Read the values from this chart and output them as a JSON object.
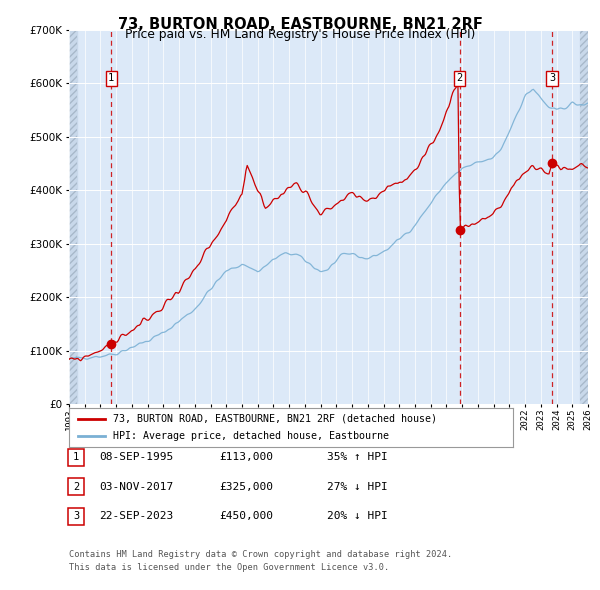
{
  "title1": "73, BURTON ROAD, EASTBOURNE, BN21 2RF",
  "title2": "Price paid vs. HM Land Registry's House Price Index (HPI)",
  "red_label": "73, BURTON ROAD, EASTBOURNE, BN21 2RF (detached house)",
  "blue_label": "HPI: Average price, detached house, Eastbourne",
  "transactions": [
    {
      "num": 1,
      "date": "08-SEP-1995",
      "price": 113000,
      "pct": "35%",
      "dir": "↑",
      "x_year": 1995.69
    },
    {
      "num": 2,
      "date": "03-NOV-2017",
      "price": 325000,
      "pct": "27%",
      "dir": "↓",
      "x_year": 2017.84
    },
    {
      "num": 3,
      "date": "22-SEP-2023",
      "price": 450000,
      "pct": "20%",
      "dir": "↓",
      "x_year": 2023.72
    }
  ],
  "footer1": "Contains HM Land Registry data © Crown copyright and database right 2024.",
  "footer2": "This data is licensed under the Open Government Licence v3.0.",
  "ylim": [
    0,
    700000
  ],
  "xlim_start": 1993.0,
  "xlim_end": 2026.0,
  "bg_color": "#dce9f8",
  "grid_color": "#ffffff",
  "red_color": "#cc0000",
  "blue_color": "#7ab0d4"
}
